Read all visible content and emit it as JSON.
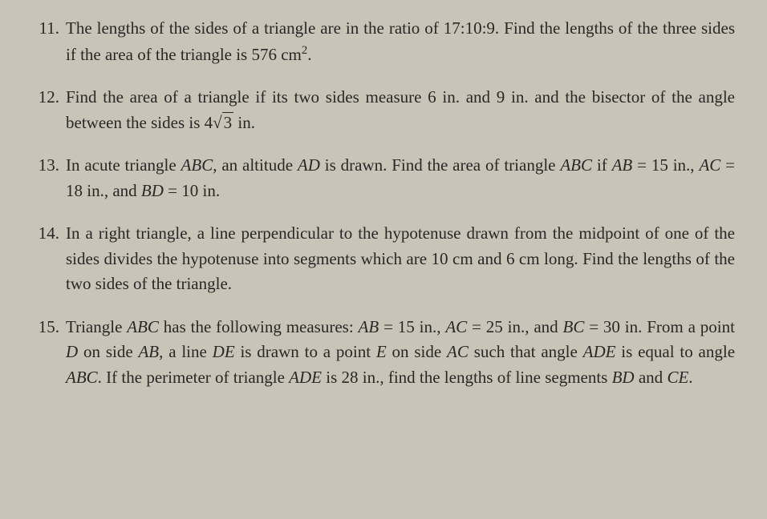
{
  "background_color": "#c8c4b8",
  "text_color": "#2a2826",
  "font_family": "Georgia, 'Times New Roman', serif",
  "font_size": 21,
  "problems": [
    {
      "number": "11.",
      "text_parts": {
        "p1": "The lengths of the sides of a triangle are in the ratio of 17:10:9. Find the lengths of the three sides if the area of the triangle is 576 cm",
        "sup1": "2",
        "p2": "."
      }
    },
    {
      "number": "12.",
      "text_parts": {
        "p1": "Find the area of a triangle if its two sides measure 6 in. and 9 in. and the bisector of the angle between the sides is 4",
        "sqrt_content": "3",
        "p2": " in."
      }
    },
    {
      "number": "13.",
      "text_parts": {
        "p1": "In acute triangle ",
        "i1": "ABC",
        "p2": ", an altitude ",
        "i2": "AD",
        "p3": " is drawn. Find the area of triangle ",
        "i3": "ABC",
        "p4": " if ",
        "i4": "AB",
        "p5": " = 15 in., ",
        "i5": "AC",
        "p6": " = 18 in., and ",
        "i6": "BD",
        "p7": " = 10 in."
      }
    },
    {
      "number": "14.",
      "text_parts": {
        "p1": "In a right triangle, a line perpendicular to the hypotenuse drawn from the midpoint of one of the sides divides the hypotenuse into segments which are 10 cm and 6 cm long. Find the lengths of the two sides of the triangle."
      }
    },
    {
      "number": "15.",
      "text_parts": {
        "p1": "Triangle ",
        "i1": "ABC",
        "p2": " has the following measures: ",
        "i2": "AB",
        "p3": " = 15 in., ",
        "i3": "AC",
        "p4": " = 25 in., and ",
        "i4": "BC",
        "p5": " = 30 in. From a point ",
        "i5": "D",
        "p6": " on side ",
        "i6": "AB",
        "p7": ", a line ",
        "i7": "DE",
        "p8": " is drawn to a point ",
        "i8": "E",
        "p9": " on side ",
        "i9": "AC",
        "p10": " such that angle ",
        "i10": "ADE",
        "p11": " is equal to angle ",
        "i11": "ABC",
        "p12": ". If the perimeter of triangle ",
        "i12": "ADE",
        "p13": " is 28 in., find the lengths of line segments ",
        "i13": "BD",
        "p14": " and ",
        "i14": "CE",
        "p15": "."
      }
    }
  ]
}
